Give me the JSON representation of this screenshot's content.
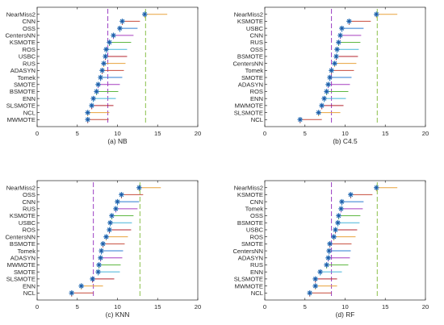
{
  "colors": {
    "mean_line": "#9b3fc2",
    "ref_line": "#8ac04a",
    "marker": "#2a6fb5",
    "dot": "#1f4e9b",
    "cycle": [
      "#e8a23b",
      "#c74b3b",
      "#2b7bd0",
      "#a63dbf",
      "#5fb842",
      "#45b5d9",
      "#b5232e"
    ]
  },
  "chart_data": [
    {
      "type": "scatter",
      "caption": "(a) NB",
      "xlim": [
        0,
        20
      ],
      "xticks": [
        0,
        5,
        10,
        15,
        20
      ],
      "mean_line": 8.8,
      "ref_line": 13.5,
      "categories": [
        "NearMiss2",
        "CNN",
        "OSS",
        "CentersNN",
        "KSMOTE",
        "ROS",
        "USBC",
        "RUS",
        "ADASYN",
        "Tomek",
        "SMOTE",
        "BSMOTE",
        "ENN",
        "SLSMOTE",
        "NCL",
        "MWMOTE"
      ],
      "values": [
        13.4,
        10.6,
        10.3,
        9.5,
        9.0,
        8.6,
        8.5,
        8.3,
        8.1,
        7.9,
        7.6,
        7.4,
        7.0,
        6.8,
        6.3,
        6.3
      ],
      "ranges": [
        [
          13.4,
          16.2
        ],
        [
          10.6,
          12.8
        ],
        [
          10.3,
          12.5
        ],
        [
          9.5,
          12.0
        ],
        [
          9.0,
          11.7
        ],
        [
          8.6,
          11.2
        ],
        [
          8.5,
          11.2
        ],
        [
          8.3,
          11.0
        ],
        [
          8.1,
          10.8
        ],
        [
          7.9,
          10.6
        ],
        [
          7.6,
          10.3
        ],
        [
          7.4,
          10.1
        ],
        [
          7.0,
          9.8
        ],
        [
          6.8,
          9.5
        ],
        [
          6.3,
          9.0
        ],
        [
          6.3,
          8.9
        ]
      ]
    },
    {
      "type": "scatter",
      "caption": "(b) C4.5",
      "xlim": [
        0,
        20
      ],
      "xticks": [
        0,
        5,
        10,
        15,
        20
      ],
      "mean_line": 8.3,
      "ref_line": 14.0,
      "categories": [
        "NearMiss2",
        "KSMOTE",
        "USBC",
        "CNN",
        "RUS",
        "OSS",
        "BSMOTE",
        "CentersNN",
        "Tomek",
        "SMOTE",
        "ADASYN",
        "ROS",
        "ENN",
        "MWMOTE",
        "SLSMOTE",
        "NCL"
      ],
      "values": [
        13.9,
        10.5,
        9.6,
        9.4,
        9.2,
        9.0,
        8.9,
        8.7,
        8.3,
        8.1,
        7.9,
        7.7,
        7.4,
        7.1,
        6.7,
        4.4
      ],
      "ranges": [
        [
          13.9,
          16.5
        ],
        [
          10.5,
          13.2
        ],
        [
          9.6,
          12.3
        ],
        [
          9.4,
          12.0
        ],
        [
          9.2,
          11.9
        ],
        [
          9.0,
          11.7
        ],
        [
          8.9,
          11.6
        ],
        [
          8.7,
          11.4
        ],
        [
          8.3,
          11.1
        ],
        [
          8.1,
          10.8
        ],
        [
          7.9,
          10.6
        ],
        [
          7.7,
          10.4
        ],
        [
          7.4,
          10.1
        ],
        [
          7.1,
          9.8
        ],
        [
          6.7,
          9.4
        ],
        [
          4.4,
          7.1
        ]
      ]
    },
    {
      "type": "scatter",
      "caption": "(c) KNN",
      "xlim": [
        0,
        20
      ],
      "xticks": [
        0,
        5,
        10,
        15,
        20
      ],
      "mean_line": 7.0,
      "ref_line": 12.8,
      "categories": [
        "NearMiss2",
        "OSS",
        "CNN",
        "RUS",
        "KSMOTE",
        "USBC",
        "ROS",
        "CentersNN",
        "BSMOTE",
        "Tomek",
        "ADASYN",
        "MWMOTE",
        "SMOTE",
        "SLSMOTE",
        "ENN",
        "NCL"
      ],
      "values": [
        12.7,
        10.5,
        10.0,
        9.8,
        9.3,
        9.1,
        9.0,
        8.6,
        8.2,
        8.0,
        7.9,
        7.7,
        7.6,
        6.9,
        5.5,
        4.3
      ],
      "ranges": [
        [
          12.7,
          15.4
        ],
        [
          10.5,
          13.2
        ],
        [
          10.0,
          12.7
        ],
        [
          9.8,
          12.5
        ],
        [
          9.3,
          12.0
        ],
        [
          9.1,
          11.8
        ],
        [
          9.0,
          11.7
        ],
        [
          8.6,
          11.3
        ],
        [
          8.2,
          10.9
        ],
        [
          8.0,
          10.7
        ],
        [
          7.9,
          10.6
        ],
        [
          7.7,
          10.4
        ],
        [
          7.6,
          10.3
        ],
        [
          6.9,
          9.6
        ],
        [
          5.5,
          8.2
        ],
        [
          4.3,
          7.0
        ]
      ]
    },
    {
      "type": "scatter",
      "caption": "(d) RF",
      "xlim": [
        0,
        20
      ],
      "xticks": [
        0,
        5,
        10,
        15,
        20
      ],
      "mean_line": 8.3,
      "ref_line": 14.0,
      "categories": [
        "NearMiss2",
        "KSMOTE",
        "CNN",
        "Tomek",
        "OSS",
        "BSMOTE",
        "USBC",
        "ROS",
        "SMOTE",
        "CentersNN",
        "ADASYN",
        "RUS",
        "ENN",
        "SLSMOTE",
        "MWMOTE",
        "NCL"
      ],
      "values": [
        13.9,
        10.7,
        9.6,
        9.5,
        9.2,
        9.1,
        8.8,
        8.6,
        8.1,
        8.0,
        7.9,
        7.7,
        6.9,
        6.3,
        6.3,
        5.6
      ],
      "ranges": [
        [
          13.9,
          16.5
        ],
        [
          10.7,
          13.4
        ],
        [
          9.6,
          12.3
        ],
        [
          9.5,
          12.2
        ],
        [
          9.2,
          11.9
        ],
        [
          9.1,
          11.8
        ],
        [
          8.8,
          11.5
        ],
        [
          8.6,
          11.3
        ],
        [
          8.1,
          10.8
        ],
        [
          8.0,
          10.7
        ],
        [
          7.9,
          10.6
        ],
        [
          7.7,
          10.4
        ],
        [
          6.9,
          9.6
        ],
        [
          6.3,
          9.0
        ],
        [
          6.3,
          9.0
        ],
        [
          5.6,
          8.3
        ]
      ]
    }
  ]
}
